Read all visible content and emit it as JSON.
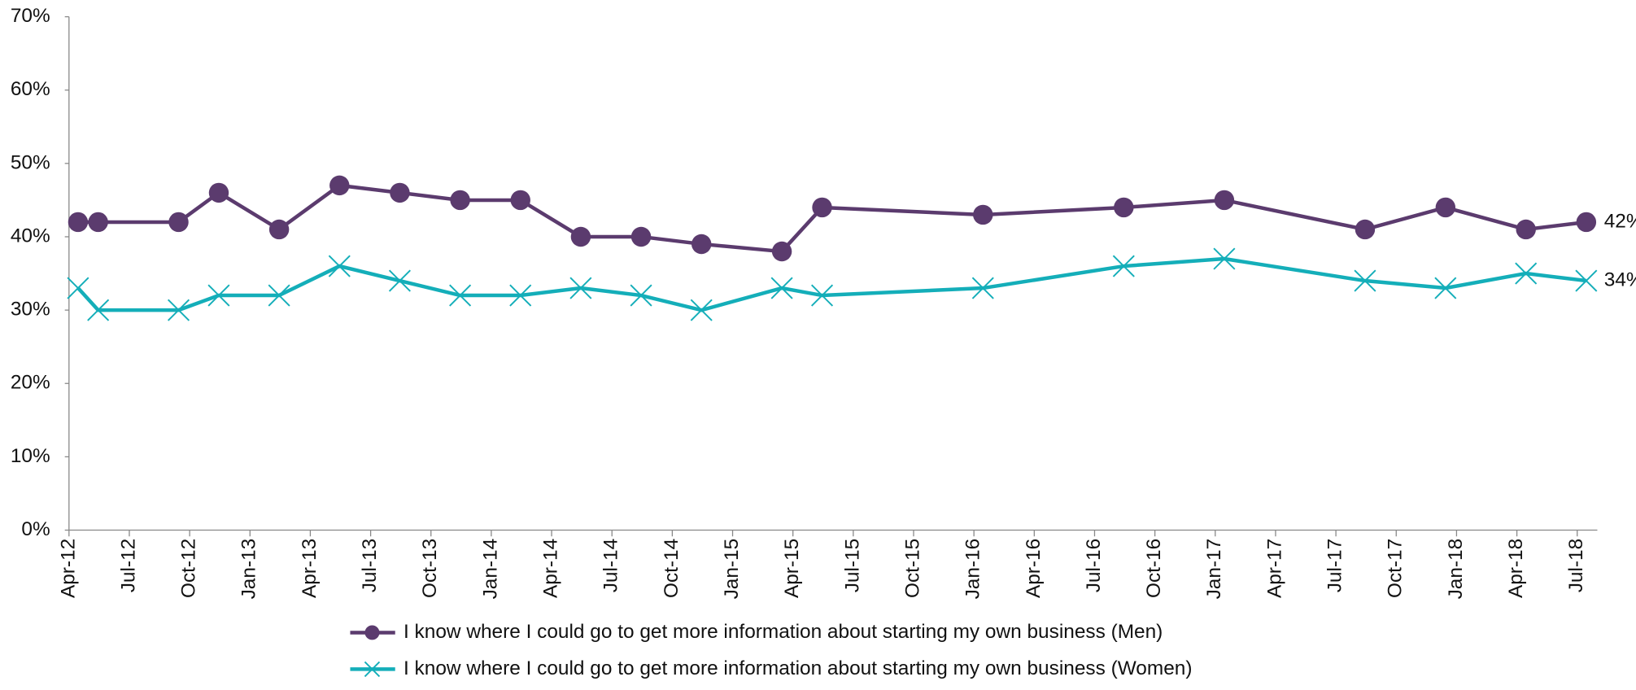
{
  "chart_data": {
    "type": "line",
    "x": [
      "2012-04",
      "2012-05",
      "2012-09",
      "2012-11",
      "2013-02",
      "2013-05",
      "2013-08",
      "2013-11",
      "2014-02",
      "2014-05",
      "2014-08",
      "2014-11",
      "2015-03",
      "2015-05",
      "2016-01",
      "2016-08",
      "2017-01",
      "2017-08",
      "2017-12",
      "2018-04",
      "2018-07"
    ],
    "series": [
      {
        "name": "I know where I could go to get more information about starting my own business (Men)",
        "color": "#5b3b6e",
        "marker": "circle",
        "values": [
          42,
          42,
          42,
          46,
          41,
          47,
          46,
          45,
          45,
          40,
          40,
          39,
          38,
          44,
          43,
          44,
          45,
          41,
          44,
          41,
          42
        ],
        "value_labels": [
          null,
          null,
          null,
          null,
          null,
          null,
          null,
          null,
          null,
          null,
          null,
          null,
          null,
          null,
          null,
          null,
          null,
          null,
          null,
          null,
          "42%"
        ]
      },
      {
        "name": "I know where I could go to get more information about starting my own business (Women)",
        "color": "#14aeb9",
        "marker": "x",
        "values": [
          33,
          30,
          30,
          32,
          32,
          36,
          34,
          32,
          32,
          33,
          32,
          30,
          33,
          32,
          33,
          36,
          37,
          34,
          33,
          35,
          34
        ],
        "value_labels": [
          null,
          null,
          null,
          null,
          null,
          null,
          null,
          null,
          null,
          null,
          null,
          null,
          null,
          null,
          null,
          null,
          null,
          null,
          null,
          null,
          "34%"
        ]
      }
    ],
    "xlim": [
      "2012-04",
      "2018-08"
    ],
    "xticks": [
      {
        "value": "2012-04",
        "label": "Apr-12"
      },
      {
        "value": "2012-07",
        "label": "Jul-12"
      },
      {
        "value": "2012-10",
        "label": "Oct-12"
      },
      {
        "value": "2013-01",
        "label": "Jan-13"
      },
      {
        "value": "2013-04",
        "label": "Apr-13"
      },
      {
        "value": "2013-07",
        "label": "Jul-13"
      },
      {
        "value": "2013-10",
        "label": "Oct-13"
      },
      {
        "value": "2014-01",
        "label": "Jan-14"
      },
      {
        "value": "2014-04",
        "label": "Apr-14"
      },
      {
        "value": "2014-07",
        "label": "Jul-14"
      },
      {
        "value": "2014-10",
        "label": "Oct-14"
      },
      {
        "value": "2015-01",
        "label": "Jan-15"
      },
      {
        "value": "2015-04",
        "label": "Apr-15"
      },
      {
        "value": "2015-07",
        "label": "Jul-15"
      },
      {
        "value": "2015-10",
        "label": "Oct-15"
      },
      {
        "value": "2016-01",
        "label": "Jan-16"
      },
      {
        "value": "2016-04",
        "label": "Apr-16"
      },
      {
        "value": "2016-07",
        "label": "Jul-16"
      },
      {
        "value": "2016-10",
        "label": "Oct-16"
      },
      {
        "value": "2017-01",
        "label": "Jan-17"
      },
      {
        "value": "2017-04",
        "label": "Apr-17"
      },
      {
        "value": "2017-07",
        "label": "Jul-17"
      },
      {
        "value": "2017-10",
        "label": "Oct-17"
      },
      {
        "value": "2018-01",
        "label": "Jan-18"
      },
      {
        "value": "2018-04",
        "label": "Apr-18"
      },
      {
        "value": "2018-07",
        "label": "Jul-18"
      }
    ],
    "ylim": [
      0,
      70
    ],
    "yticks": [
      {
        "value": 0,
        "label": "0%"
      },
      {
        "value": 10,
        "label": "10%"
      },
      {
        "value": 20,
        "label": "20%"
      },
      {
        "value": 30,
        "label": "30%"
      },
      {
        "value": 40,
        "label": "40%"
      },
      {
        "value": 50,
        "label": "50%"
      },
      {
        "value": 60,
        "label": "60%"
      },
      {
        "value": 70,
        "label": "70%"
      }
    ],
    "grid": false,
    "legend": "bottom"
  }
}
